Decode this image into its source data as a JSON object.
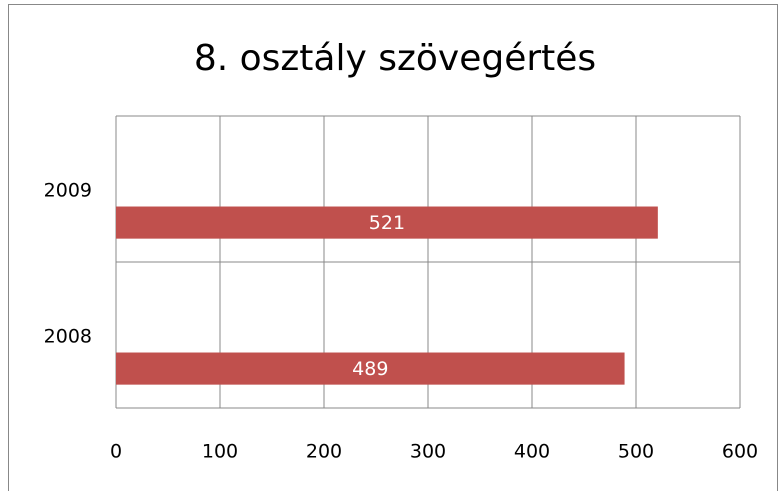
{
  "chart_data": {
    "type": "bar",
    "orientation": "horizontal",
    "title": "8. osztály szövegértés",
    "categories": [
      "2009",
      "2008"
    ],
    "values": [
      521,
      489
    ],
    "color": "#c0504d",
    "xlim": [
      0,
      600
    ],
    "xticks": [
      0,
      100,
      200,
      300,
      400,
      500,
      600
    ],
    "grid": true
  }
}
